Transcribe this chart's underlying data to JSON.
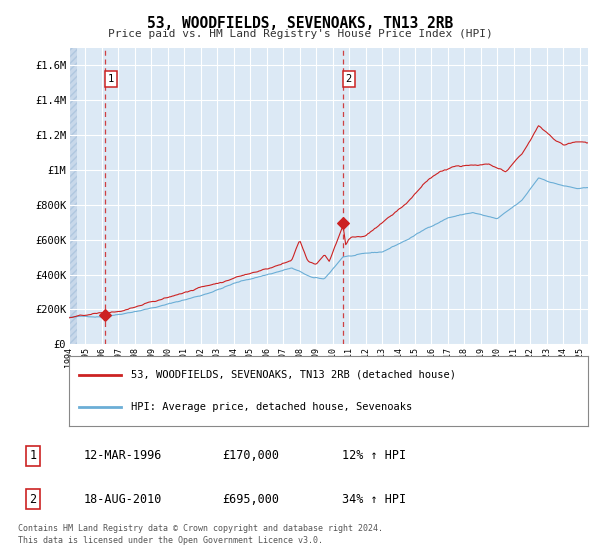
{
  "title": "53, WOODFIELDS, SEVENOAKS, TN13 2RB",
  "subtitle": "Price paid vs. HM Land Registry's House Price Index (HPI)",
  "xmin": 1994.0,
  "xmax": 2025.5,
  "ymin": 0,
  "ymax": 1700000,
  "yticks": [
    0,
    200000,
    400000,
    600000,
    800000,
    1000000,
    1200000,
    1400000,
    1600000
  ],
  "ytick_labels": [
    "£0",
    "£200K",
    "£400K",
    "£600K",
    "£800K",
    "£1M",
    "£1.2M",
    "£1.4M",
    "£1.6M"
  ],
  "xtick_years": [
    1994,
    1995,
    1996,
    1997,
    1998,
    1999,
    2000,
    2001,
    2002,
    2003,
    2004,
    2005,
    2006,
    2007,
    2008,
    2009,
    2010,
    2011,
    2012,
    2013,
    2014,
    2015,
    2016,
    2017,
    2018,
    2019,
    2020,
    2021,
    2022,
    2023,
    2024,
    2025
  ],
  "hpi_color": "#6baed6",
  "price_color": "#cc2222",
  "marker_color": "#cc2222",
  "background_color": "#dce9f5",
  "hatch_color": "#c8d8ea",
  "grid_color": "#ffffff",
  "transaction1_x": 1996.2,
  "transaction1_y": 170000,
  "transaction2_x": 2010.63,
  "transaction2_y": 695000,
  "vline1_x": 1996.2,
  "vline2_x": 2010.63,
  "legend_label_price": "53, WOODFIELDS, SEVENOAKS, TN13 2RB (detached house)",
  "legend_label_hpi": "HPI: Average price, detached house, Sevenoaks",
  "table_row1_num": "1",
  "table_row1_date": "12-MAR-1996",
  "table_row1_price": "£170,000",
  "table_row1_hpi": "12% ↑ HPI",
  "table_row2_num": "2",
  "table_row2_date": "18-AUG-2010",
  "table_row2_price": "£695,000",
  "table_row2_hpi": "34% ↑ HPI",
  "footnote1": "Contains HM Land Registry data © Crown copyright and database right 2024.",
  "footnote2": "This data is licensed under the Open Government Licence v3.0."
}
